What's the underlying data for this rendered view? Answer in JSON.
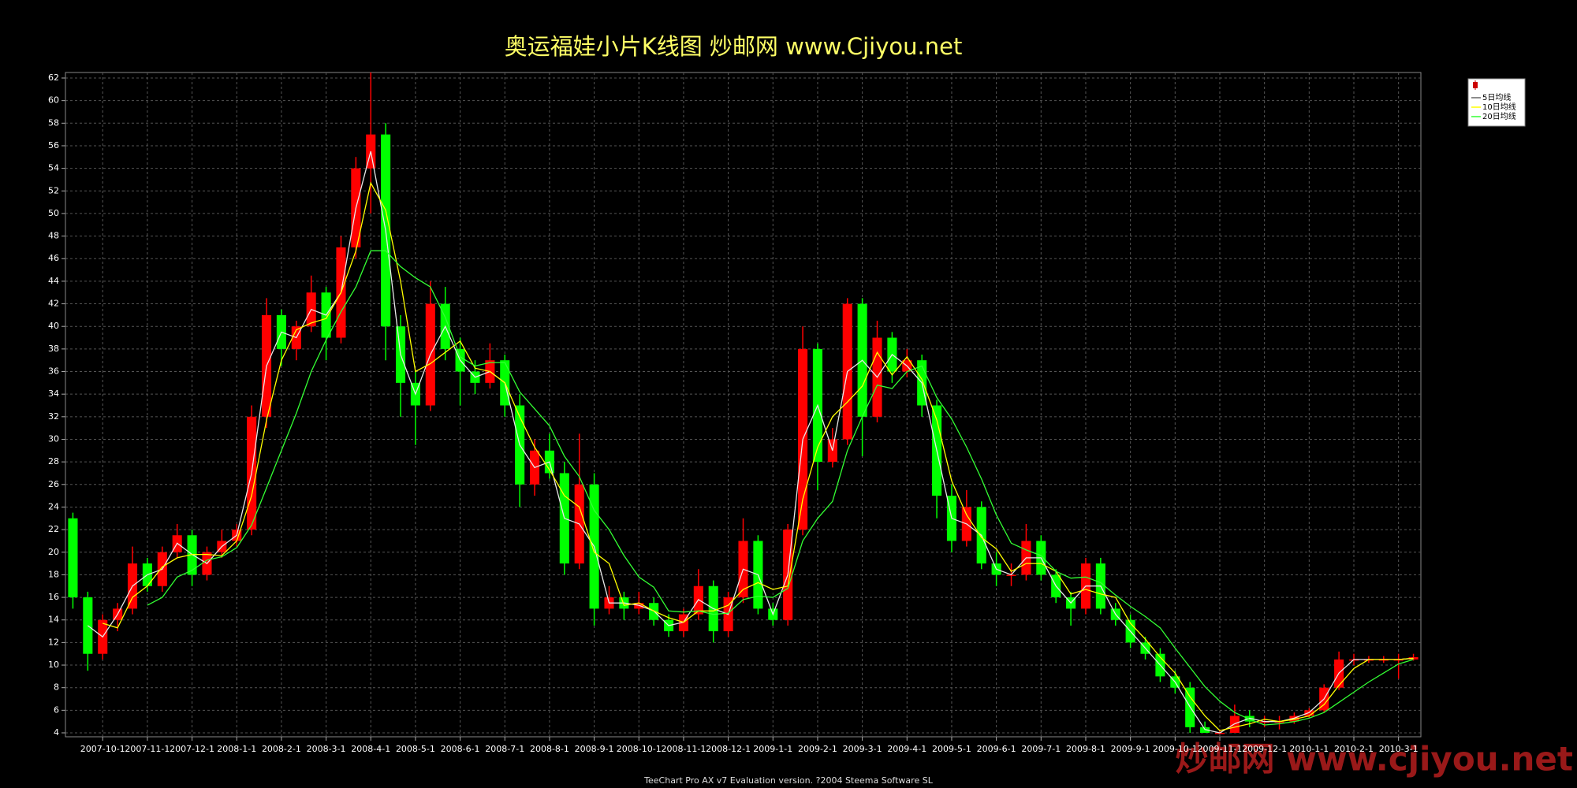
{
  "chart_data": {
    "type": "candlestick",
    "title": "奥运福娃小片K线图  炒邮网 www.Cjiyou.net",
    "categories": [
      null,
      null,
      "2007-10-1",
      null,
      null,
      "2007-11-1",
      null,
      null,
      "2007-12-1",
      null,
      null,
      "2008-1-1",
      null,
      null,
      "2008-2-1",
      null,
      null,
      "2008-3-1",
      null,
      null,
      "2008-4-1",
      null,
      null,
      "2008-5-1",
      null,
      null,
      "2008-6-1",
      null,
      null,
      "2008-7-1",
      null,
      null,
      "2008-8-1",
      null,
      null,
      "2008-9-1",
      null,
      null,
      "2008-10-1",
      null,
      null,
      "2008-11-1",
      null,
      null,
      "2008-12-1",
      null,
      null,
      "2009-1-1",
      null,
      null,
      "2009-2-1",
      null,
      null,
      "2009-3-1",
      null,
      null,
      "2009-4-1",
      null,
      null,
      "2009-5-1",
      null,
      null,
      "2009-6-1",
      null,
      null,
      "2009-7-1",
      null,
      null,
      "2009-8-1",
      null,
      null,
      "2009-9-1",
      null,
      null,
      "2009-10-1",
      null,
      null,
      "2009-11-1",
      null,
      null,
      "2009-12-1",
      null,
      null,
      "2010-1-1",
      null,
      null,
      "2010-2-1",
      null,
      null,
      "2010-3-1",
      null
    ],
    "open": [
      23,
      16,
      11,
      14,
      15,
      19,
      17,
      20,
      21.5,
      18,
      20,
      21,
      22,
      32,
      41,
      38,
      40,
      43,
      39,
      47,
      54,
      57,
      40,
      35,
      33,
      42,
      38,
      36,
      35,
      37,
      33,
      26,
      29,
      27,
      19,
      26,
      15,
      16,
      15,
      15.5,
      14,
      13,
      14.5,
      17,
      13,
      16,
      21,
      15,
      14,
      22,
      38,
      28,
      30,
      42,
      32,
      39,
      36,
      37,
      33,
      25,
      21,
      24,
      19,
      18,
      18,
      21,
      18,
      16,
      15,
      19,
      15,
      14,
      12,
      11,
      9,
      8,
      4.5,
      4,
      4,
      5.5,
      5,
      5,
      5,
      5.5,
      6,
      8,
      10.5,
      10.5,
      10.5,
      10.5,
      10.5
    ],
    "high": [
      23.5,
      16.5,
      14.5,
      15.5,
      20.5,
      19.5,
      20.5,
      22.5,
      22,
      20.5,
      22,
      22.5,
      33,
      42.5,
      41.5,
      40.5,
      44.5,
      43.5,
      48,
      55,
      62.5,
      58,
      41,
      36,
      44,
      43.5,
      39,
      37,
      38.5,
      37.5,
      34,
      30,
      30.5,
      28,
      30.5,
      27,
      17,
      16.5,
      16.5,
      16,
      14.5,
      15,
      18.5,
      17.5,
      16.5,
      23,
      21.5,
      15.5,
      22.5,
      40,
      38.5,
      31,
      42.5,
      42.5,
      40.5,
      39.5,
      38,
      37.5,
      33.5,
      26,
      25.5,
      24.5,
      20,
      19,
      22.5,
      21.5,
      18.5,
      16.5,
      19.5,
      19.5,
      15.5,
      14.5,
      12.5,
      11.5,
      9.5,
      8.5,
      5,
      4.3,
      6.5,
      6,
      5.5,
      5.5,
      5.8,
      6.2,
      8.3,
      11.2,
      11,
      10.8,
      10.8,
      11,
      11
    ],
    "low": [
      15,
      9.5,
      10.5,
      13,
      14.5,
      16.5,
      16.5,
      19.5,
      17,
      17.5,
      19.5,
      20.5,
      21.5,
      31,
      36.5,
      37,
      39.5,
      37,
      38.5,
      46,
      50,
      37,
      32,
      29.5,
      32.5,
      37,
      33,
      34,
      34.5,
      32,
      24,
      25,
      26.5,
      18,
      18.5,
      13.5,
      14.5,
      14,
      14.5,
      13.5,
      12.5,
      12.5,
      14,
      12,
      12.5,
      15.5,
      14.5,
      13.5,
      13.5,
      21.5,
      25.5,
      27.5,
      29.5,
      28.5,
      31.5,
      35,
      35.5,
      32,
      23,
      20,
      20.5,
      18.5,
      17,
      17,
      17.5,
      17.5,
      15.5,
      13.5,
      14.5,
      14.5,
      13.5,
      11.5,
      10.5,
      8.5,
      7.5,
      4,
      4,
      4,
      4,
      4.5,
      4.5,
      4.3,
      4.8,
      5.3,
      5.8,
      7.8,
      10,
      10.2,
      10.2,
      8.8,
      10.4
    ],
    "close": [
      16,
      11,
      14,
      15,
      19,
      17,
      20,
      21.5,
      18,
      20,
      21,
      22,
      32,
      41,
      38,
      40,
      43,
      39,
      47,
      54,
      57,
      40,
      35,
      33,
      42,
      38,
      36,
      35,
      37,
      33,
      26,
      29,
      27,
      19,
      26,
      15,
      16,
      15,
      15.5,
      14,
      13,
      14.5,
      17,
      13,
      16,
      21,
      15,
      14,
      22,
      38,
      28,
      30,
      42,
      32,
      39,
      36,
      37,
      33,
      25,
      21,
      24,
      19,
      18,
      18,
      21,
      18,
      16,
      15,
      19,
      15,
      14,
      12,
      11,
      9,
      8,
      4.5,
      4,
      4,
      5.5,
      5,
      5,
      5,
      5.5,
      6,
      8,
      10.5,
      10.5,
      10.5,
      10.5,
      10.5,
      10.7
    ],
    "up_color": "#ff0000",
    "down_color": "#00ff00",
    "series": [
      {
        "name": "5日均线",
        "color": "#e8e8e8",
        "values": [
          null,
          13.5,
          12.5,
          14.5,
          17,
          18,
          18.5,
          20.8,
          19.8,
          19,
          20.5,
          21.5,
          27,
          36.5,
          39.5,
          39,
          41.5,
          41,
          43,
          50.5,
          55.5,
          48.5,
          37.5,
          34,
          37.5,
          40,
          37,
          35.5,
          36,
          35,
          29.5,
          27.5,
          28,
          23,
          22.5,
          20.5,
          15.5,
          15.5,
          15.3,
          14.8,
          13.5,
          13.8,
          15.8,
          15,
          14.5,
          18.5,
          18,
          14.5,
          18,
          30,
          33,
          29,
          36,
          37,
          35.5,
          37.5,
          36.5,
          35,
          29,
          23,
          22.5,
          21.5,
          18.5,
          18,
          19.5,
          19.5,
          17,
          15.5,
          17,
          17,
          14.5,
          13,
          11.5,
          10,
          8.5,
          6.3,
          4.3,
          4,
          4.8,
          5.3,
          5,
          5,
          5.3,
          5.8,
          7,
          9.3,
          10.5,
          10.5,
          10.5,
          10.5,
          10.6
        ]
      },
      {
        "name": "10日均线",
        "color": "#ffff00",
        "values": [
          null,
          null,
          13.7,
          13.3,
          16,
          17,
          18.7,
          19.5,
          19.8,
          19.8,
          19.7,
          21,
          25,
          31.7,
          37,
          39.7,
          40.3,
          40.7,
          43,
          46.7,
          52.7,
          50.3,
          44,
          36,
          36.7,
          37.7,
          38.7,
          36.3,
          36,
          35,
          32,
          29.3,
          27.3,
          25,
          24,
          20,
          19,
          15.3,
          15.5,
          14.8,
          14.2,
          13.8,
          14.8,
          14.8,
          15.3,
          16.7,
          17.3,
          16.7,
          17,
          24.7,
          29.3,
          32,
          33.3,
          34.7,
          37.7,
          35.7,
          37.3,
          35.3,
          31.7,
          26.3,
          23.3,
          21.3,
          20.3,
          18.3,
          19,
          19,
          18.3,
          16.3,
          16.7,
          16.3,
          16,
          13.7,
          12.3,
          10.7,
          9.3,
          7.2,
          5.5,
          4.2,
          4.5,
          4.8,
          5.2,
          5,
          5.2,
          5.5,
          6.5,
          8.2,
          9.7,
          10.5,
          10.5,
          10.5,
          10.6
        ]
      },
      {
        "name": "20日均线",
        "color": "#33ff33",
        "values": [
          null,
          null,
          null,
          null,
          null,
          15.3,
          16,
          17.8,
          18.4,
          19.3,
          19.6,
          20.4,
          22.4,
          25.7,
          29,
          32.3,
          36,
          38.8,
          41.3,
          43.5,
          46.7,
          46.7,
          45.3,
          44.3,
          43.5,
          40.8,
          37.3,
          36.5,
          36.8,
          36.8,
          34.2,
          32.7,
          31.2,
          28.5,
          26.7,
          23.7,
          22,
          19.7,
          17.8,
          16.9,
          14.8,
          14.7,
          14.8,
          14.5,
          14.6,
          15.8,
          16.1,
          16,
          16.8,
          21,
          23,
          24.5,
          29,
          32,
          34.8,
          34.5,
          36,
          36.5,
          33.7,
          31.8,
          29.3,
          26.5,
          23.3,
          20.8,
          20.2,
          19.7,
          18.3,
          17.7,
          17.8,
          17.3,
          16.2,
          15.2,
          14.3,
          13.3,
          11.5,
          9.8,
          8.1,
          6.8,
          5.8,
          5.2,
          4.7,
          4.8,
          5,
          5.3,
          5.8,
          6.7,
          7.6,
          8.5,
          9.3,
          10.1,
          10.5
        ]
      }
    ],
    "ylim": [
      4,
      62
    ],
    "yticks": [
      4,
      6,
      8,
      10,
      12,
      14,
      16,
      18,
      20,
      22,
      24,
      26,
      28,
      30,
      32,
      34,
      36,
      38,
      40,
      42,
      44,
      46,
      48,
      50,
      52,
      54,
      56,
      58,
      60,
      62
    ],
    "grid": true
  },
  "footer": "TeeChart Pro AX v7 Evaluation version. ?2004 Steema Software SL",
  "watermark": "炒邮网 www.cjiyou.net"
}
